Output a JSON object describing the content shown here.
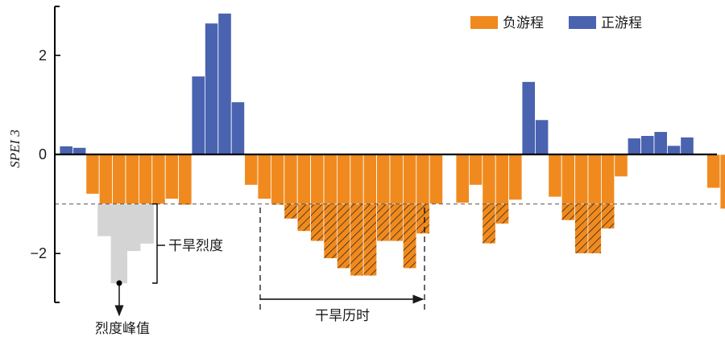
{
  "chart_data": {
    "type": "bar",
    "ylabel": "SPEI 3",
    "ylim": [
      -3.1,
      3.05
    ],
    "yticks": [
      2,
      0,
      -2
    ],
    "ytick_labels": [
      "2",
      "0",
      "−2"
    ],
    "threshold": -1,
    "legend_position": "top-right",
    "series": [
      {
        "name": "负游程",
        "color": "#f08a1e"
      },
      {
        "name": "正游程",
        "color": "#4a63b0"
      }
    ],
    "values": [
      0.17,
      0.14,
      -0.8,
      -1.0,
      -1.0,
      -1.0,
      -1.0,
      -1.0,
      -0.9,
      -1.02,
      1.58,
      2.65,
      2.85,
      1.06,
      -0.62,
      -0.9,
      -1.02,
      -1.3,
      -1.55,
      -1.75,
      -2.1,
      -2.3,
      -2.45,
      -2.45,
      -1.75,
      -1.75,
      -2.3,
      -1.6,
      -1.0,
      0.0,
      -0.98,
      -0.62,
      -1.8,
      -1.4,
      -0.92,
      1.47,
      0.7,
      -0.86,
      -1.33,
      -2.0,
      -2.0,
      -1.5,
      -0.45,
      0.33,
      0.38,
      0.46,
      0.18,
      0.35,
      0.0,
      -0.68,
      -1.1
    ],
    "hatched_spans": [
      [
        16,
        27
      ],
      [
        31,
        33
      ],
      [
        37,
        41
      ]
    ],
    "peak_highlight": [
      {
        "from": 3,
        "to": 4,
        "value": -1.65
      },
      {
        "from": 4,
        "to": 5,
        "value": -2.6
      },
      {
        "from": 5,
        "to": 6,
        "value": -1.95
      },
      {
        "from": 6,
        "to": 7,
        "value": -1.8
      }
    ],
    "annotations": {
      "severity": "干旱烈度",
      "peak": "烈度峰值",
      "duration": "干旱历时"
    }
  }
}
